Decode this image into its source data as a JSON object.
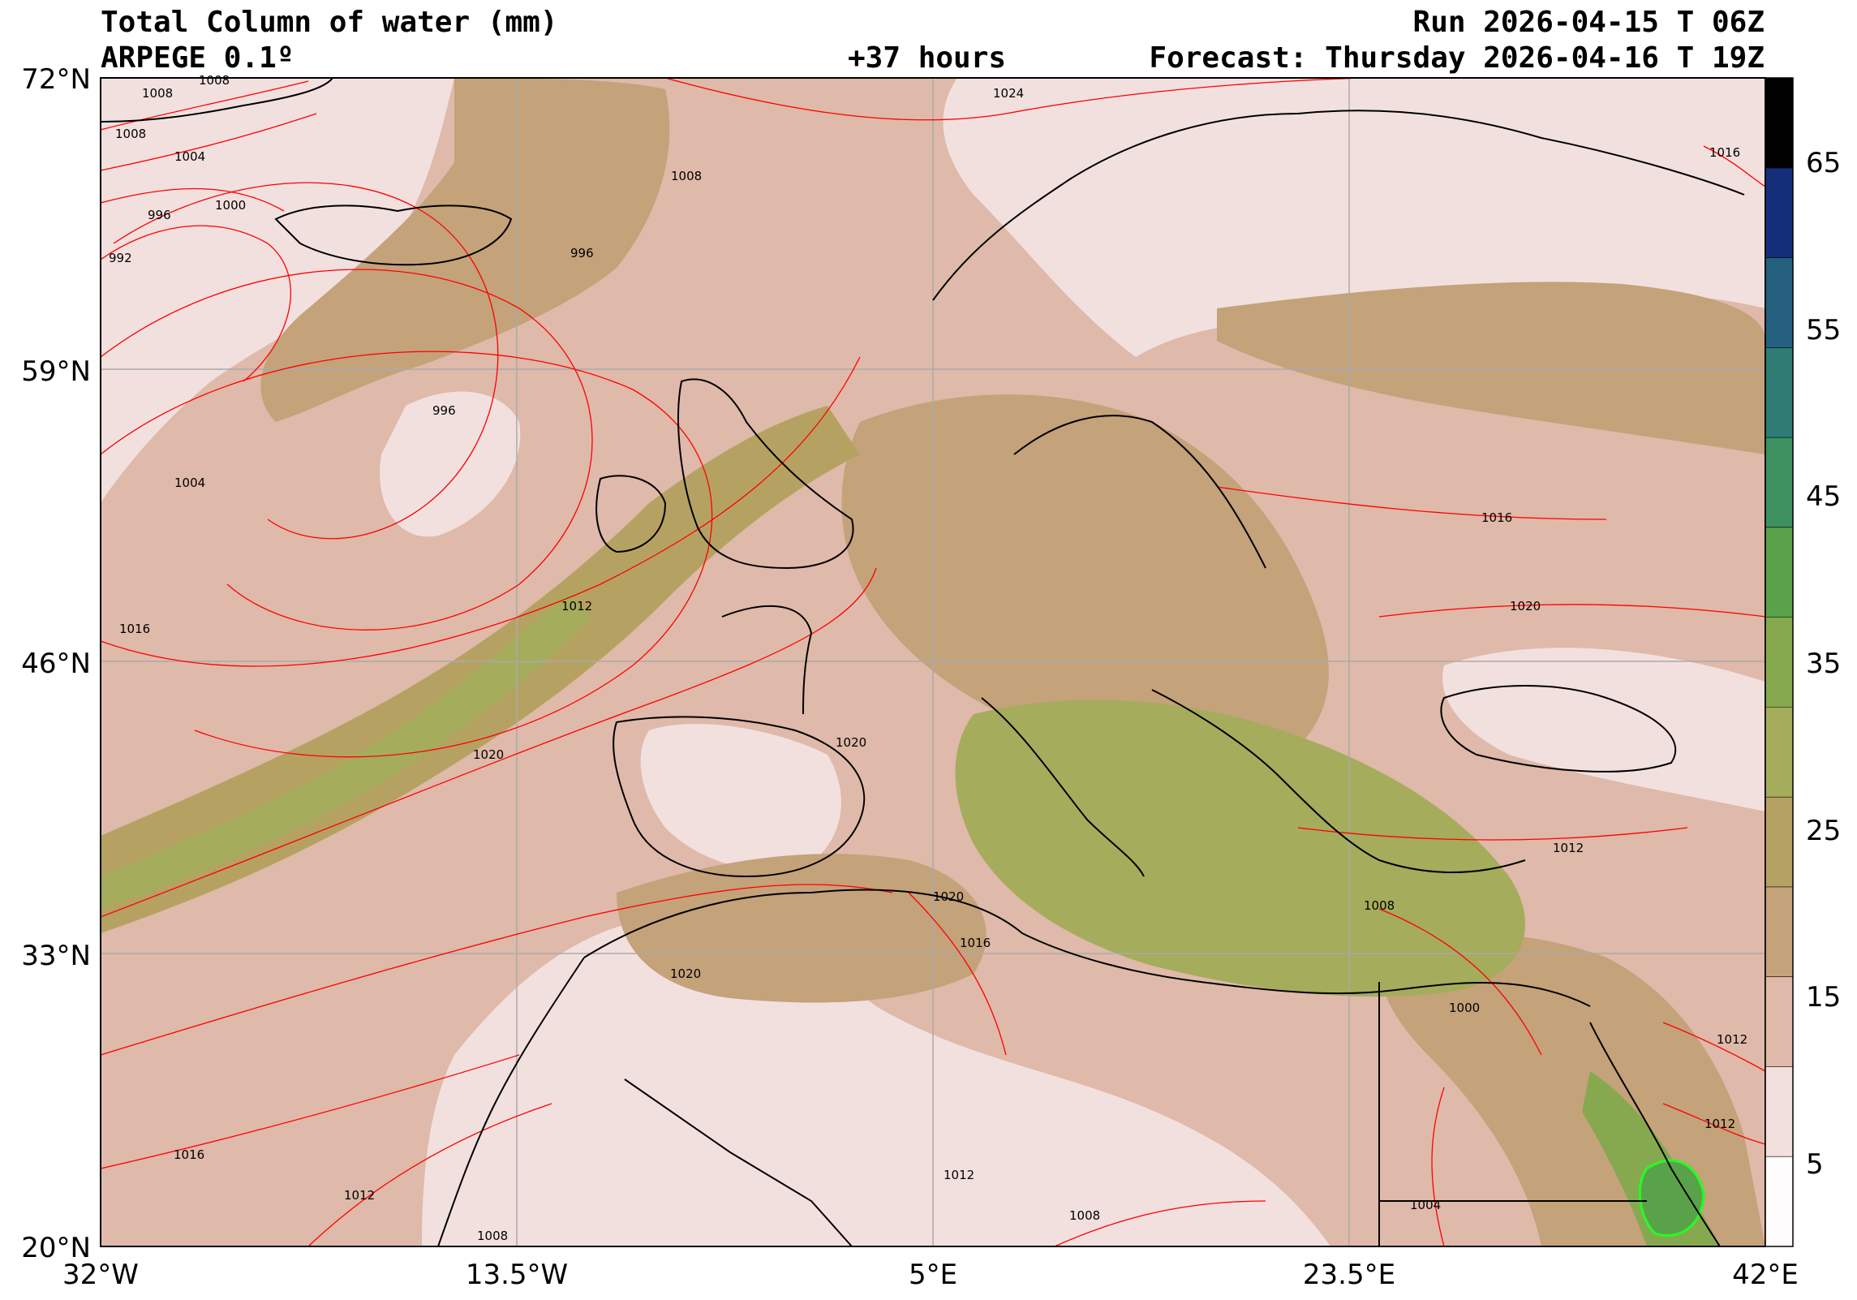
{
  "header": {
    "title": "Total Column of water (mm)",
    "model": "ARPEGE 0.1º",
    "lead_time": "+37 hours",
    "run": "Run 2026-04-15 T 06Z",
    "forecast": "Forecast: Thursday 2026-04-16 T 19Z"
  },
  "axes": {
    "lat_ticks": [
      "72°N",
      "59°N",
      "46°N",
      "33°N",
      "20°N"
    ],
    "lon_ticks": [
      "32°W",
      "13.5°W",
      "5°E",
      "23.5°E",
      "42°E"
    ],
    "lat_range": [
      20,
      72
    ],
    "lon_range": [
      -32,
      42
    ]
  },
  "colorbar": {
    "labels": [
      "65",
      "55",
      "45",
      "35",
      "25",
      "15",
      "5"
    ],
    "range": [
      0,
      70
    ],
    "colors": [
      "#fdfbfb",
      "#f2e0df",
      "#dfb9a9",
      "#c4a27a",
      "#b5a262",
      "#a5ac5c",
      "#86a950",
      "#5aa24a",
      "#3d9060",
      "#2e7c74",
      "#24607e",
      "#142e7a",
      "#000000"
    ]
  },
  "isobars": {
    "color": "#ff0000",
    "labels": [
      "1008",
      "1008",
      "1008",
      "1004",
      "1000",
      "996",
      "992",
      "996",
      "1008",
      "1024",
      "1016",
      "996",
      "1004",
      "1016",
      "1012",
      "1016",
      "1020",
      "1020",
      "1020",
      "1020",
      "1016",
      "1020",
      "1012",
      "1008",
      "1000",
      "1012",
      "1012",
      "1012",
      "1016",
      "1012",
      "1008",
      "1008",
      "1004"
    ]
  }
}
